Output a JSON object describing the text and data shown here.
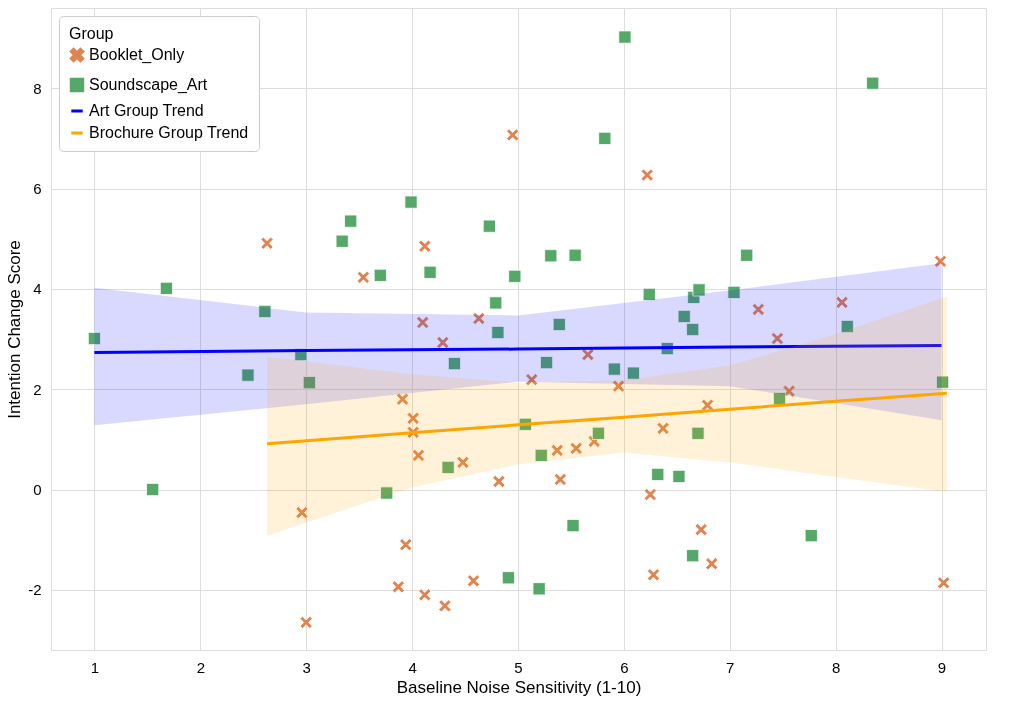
{
  "chart_data": {
    "type": "scatter",
    "xlabel": "Baseline Noise Sensitivity (1-10)",
    "ylabel": "Intention Change Score",
    "legend_title": "Group",
    "legend": "top left",
    "grid": true,
    "xlim": [
      0.59,
      9.42
    ],
    "ylim": [
      -3.2,
      9.6
    ],
    "xticks": [
      1,
      2,
      3,
      4,
      5,
      6,
      7,
      8,
      9
    ],
    "yticks": [
      -2,
      0,
      2,
      4,
      6,
      8
    ],
    "series": [
      {
        "name": "Booklet_Only",
        "marker": "cross",
        "color": "#dd8452",
        "x": [
          2.63,
          3.54,
          2.96,
          3.0,
          4.12,
          4.1,
          4.29,
          4.63,
          4.95,
          6.22,
          3.91,
          4.01,
          4.01,
          4.06,
          4.48,
          4.82,
          5.13,
          5.66,
          5.37,
          5.55,
          5.72,
          5.4,
          5.95,
          6.37,
          6.79,
          6.25,
          6.28,
          6.73,
          6.83,
          7.27,
          7.45,
          7.56,
          8.06,
          8.99,
          9.02,
          3.94,
          3.87,
          4.12,
          4.31,
          4.58
        ],
        "values": [
          4.91,
          4.23,
          -0.46,
          -2.65,
          4.85,
          3.33,
          2.93,
          3.41,
          7.07,
          6.27,
          1.8,
          1.42,
          1.14,
          0.68,
          0.54,
          0.16,
          2.19,
          2.69,
          0.78,
          0.82,
          0.96,
          0.2,
          2.06,
          1.22,
          1.68,
          -0.1,
          -1.7,
          -0.8,
          -1.48,
          3.59,
          3.01,
          1.96,
          3.73,
          4.55,
          -1.86,
          -1.1,
          -1.94,
          -2.1,
          -2.32,
          -1.82
        ]
      },
      {
        "name": "Soundscape_Art",
        "marker": "square",
        "color": "#55a868",
        "x": [
          1.0,
          1.68,
          1.55,
          2.61,
          2.45,
          2.95,
          3.03,
          3.34,
          3.42,
          3.7,
          3.76,
          3.99,
          4.17,
          4.4,
          4.34,
          4.73,
          4.79,
          4.81,
          4.97,
          5.07,
          4.91,
          5.2,
          5.22,
          5.31,
          5.27,
          5.39,
          5.54,
          5.52,
          5.76,
          5.91,
          6.09,
          6.01,
          5.82,
          6.24,
          6.32,
          6.41,
          6.52,
          6.57,
          6.66,
          6.71,
          6.65,
          6.7,
          6.65,
          7.04,
          7.16,
          7.47,
          7.77,
          8.11,
          8.35,
          9.01
        ],
        "values": [
          3.01,
          4.01,
          0.0,
          3.55,
          2.28,
          2.69,
          2.13,
          4.95,
          5.35,
          4.27,
          -0.07,
          5.73,
          4.33,
          2.51,
          0.44,
          5.25,
          3.72,
          3.13,
          4.25,
          1.3,
          -1.76,
          -1.98,
          0.68,
          4.66,
          2.53,
          3.29,
          4.67,
          -0.72,
          1.12,
          2.4,
          2.32,
          9.02,
          7.0,
          3.89,
          0.3,
          2.81,
          0.26,
          3.45,
          3.83,
          3.98,
          3.19,
          1.12,
          -1.32,
          3.93,
          4.67,
          1.81,
          -0.92,
          3.25,
          8.1,
          2.14
        ]
      },
      {
        "name": "Art Group Trend",
        "type": "line",
        "marker": "none",
        "color": "#0000ff",
        "x": [
          1,
          3,
          5,
          7,
          9
        ],
        "values": [
          2.73,
          2.77,
          2.8,
          2.84,
          2.87
        ],
        "lower": [
          1.28,
          1.7,
          2.15,
          2.06,
          1.38
        ],
        "upper": [
          4.02,
          3.53,
          3.47,
          3.97,
          4.51
        ]
      },
      {
        "name": "Brochure Group Trend",
        "type": "line",
        "marker": "none",
        "color": "#ffa500",
        "x": [
          2.63,
          4,
          5,
          6,
          7,
          8,
          9.05
        ],
        "values": [
          0.91,
          1.13,
          1.29,
          1.44,
          1.6,
          1.76,
          1.92
        ],
        "lower": [
          -0.92,
          0.04,
          0.5,
          0.74,
          0.54,
          0.25,
          -0.05
        ],
        "upper": [
          2.65,
          2.3,
          2.13,
          2.18,
          2.47,
          3.1,
          3.85
        ]
      }
    ]
  }
}
